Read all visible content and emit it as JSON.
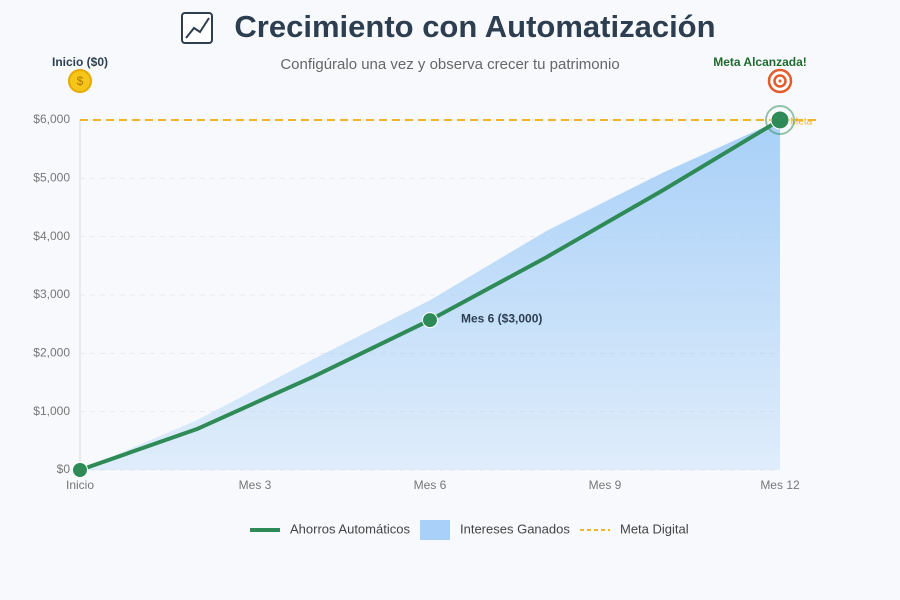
{
  "chart_data": {
    "type": "line",
    "title": "Crecimiento con Automatización",
    "subtitle": "Configúralo una vez y observa crecer tu patrimonio",
    "x": [
      0,
      2,
      4,
      6,
      8,
      10,
      12
    ],
    "xlim": [
      0,
      12
    ],
    "xticks": [
      {
        "value": 0,
        "label": "Inicio"
      },
      {
        "value": 3,
        "label": "Mes 3"
      },
      {
        "value": 6,
        "label": "Mes 6"
      },
      {
        "value": 9,
        "label": "Mes 9"
      },
      {
        "value": 12,
        "label": "Mes 12"
      }
    ],
    "ylim": [
      0,
      6000
    ],
    "yticks": [
      {
        "value": 0,
        "label": "$0"
      },
      {
        "value": 1000,
        "label": "$1,000"
      },
      {
        "value": 2000,
        "label": "$2,000"
      },
      {
        "value": 3000,
        "label": "$3,000"
      },
      {
        "value": 4000,
        "label": "$4,000"
      },
      {
        "value": 5000,
        "label": "$5,000"
      },
      {
        "value": 6000,
        "label": "$6,000"
      }
    ],
    "grid": true,
    "series": [
      {
        "name": "Ahorros Automáticos",
        "color": "#2e8b57",
        "values": [
          0,
          700,
          1600,
          2570,
          3650,
          4800,
          6000
        ]
      },
      {
        "name": "Intereses Ganados",
        "type": "area",
        "color": "#a8d0f8",
        "values": [
          0,
          850,
          1900,
          2910,
          4100,
          5100,
          6000
        ]
      }
    ],
    "target": {
      "name": "Meta Digital",
      "label": "Meta",
      "value": 6000,
      "color": "#f0b429"
    },
    "annotations": [
      "Inicio ($0)",
      "Mes 6 ($3,000)",
      "Meta Alcanzada!"
    ]
  }
}
